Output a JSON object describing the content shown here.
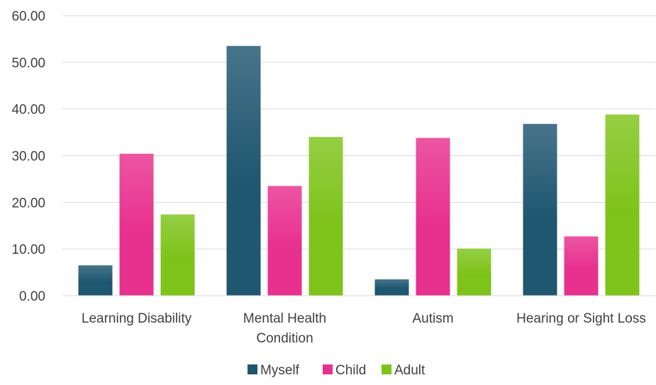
{
  "chart_data": {
    "type": "bar",
    "title": "",
    "xlabel": "",
    "ylabel": "",
    "ylim": [
      0,
      60
    ],
    "yticks": [
      "0.00",
      "10.00",
      "20.00",
      "30.00",
      "40.00",
      "50.00",
      "60.00"
    ],
    "categories": [
      [
        "Learning Disability"
      ],
      [
        "Mental Health",
        "Condition"
      ],
      [
        "Autism"
      ],
      [
        "Hearing or Sight Loss"
      ]
    ],
    "series": [
      {
        "name": "Myself",
        "color": "#1f5670",
        "values": [
          6.5,
          53.5,
          3.5,
          36.8
        ]
      },
      {
        "name": "Child",
        "color": "#e8308e",
        "values": [
          30.4,
          23.5,
          33.8,
          12.7
        ]
      },
      {
        "name": "Adult",
        "color": "#7ec31a",
        "values": [
          17.4,
          34.0,
          10.1,
          38.8
        ]
      }
    ],
    "grid": true,
    "legend_position": "bottom"
  }
}
